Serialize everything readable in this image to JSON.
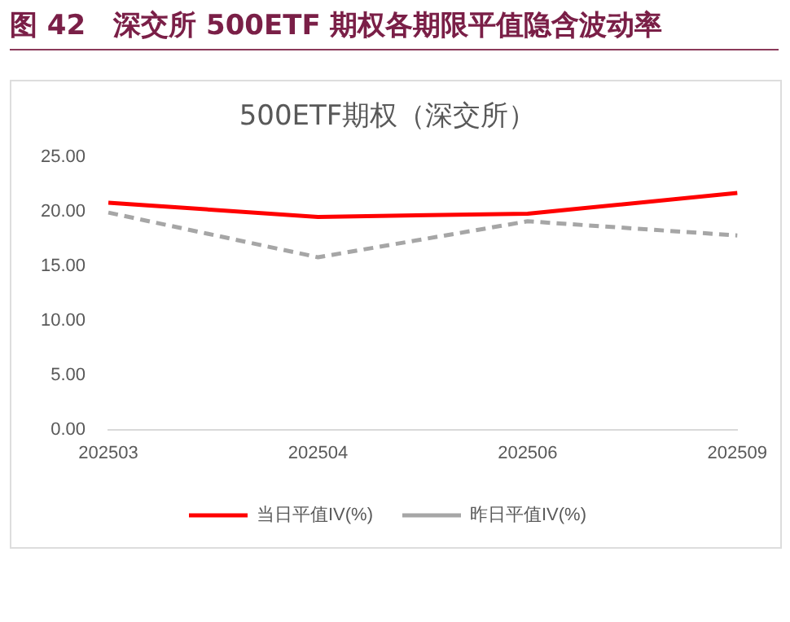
{
  "chart_data": {
    "type": "line",
    "title": "图 42　深交所 500ETF 期权各期限平值隐含波动率",
    "subtitle": "500ETF期权（深交所）",
    "categories": [
      "202503",
      "202504",
      "202506",
      "202509"
    ],
    "series": [
      {
        "name": "当日平值IV(%)",
        "color": "#ff0000",
        "line_style": "solid",
        "values": [
          20.8,
          19.5,
          19.8,
          21.7
        ]
      },
      {
        "name": "昨日平值IV(%)",
        "color": "#a6a6a6",
        "line_style": "dashed",
        "values": [
          19.9,
          15.8,
          19.1,
          17.8
        ]
      }
    ],
    "ylim": [
      0,
      25
    ],
    "yticks": [
      {
        "value": 0,
        "label": "0.00"
      },
      {
        "value": 5,
        "label": "5.00"
      },
      {
        "value": 10,
        "label": "10.00"
      },
      {
        "value": 15,
        "label": "15.00"
      },
      {
        "value": 20,
        "label": "20.00"
      },
      {
        "value": 25,
        "label": "25.00"
      }
    ],
    "grid": false,
    "legend": "bottom",
    "marker": "none"
  }
}
